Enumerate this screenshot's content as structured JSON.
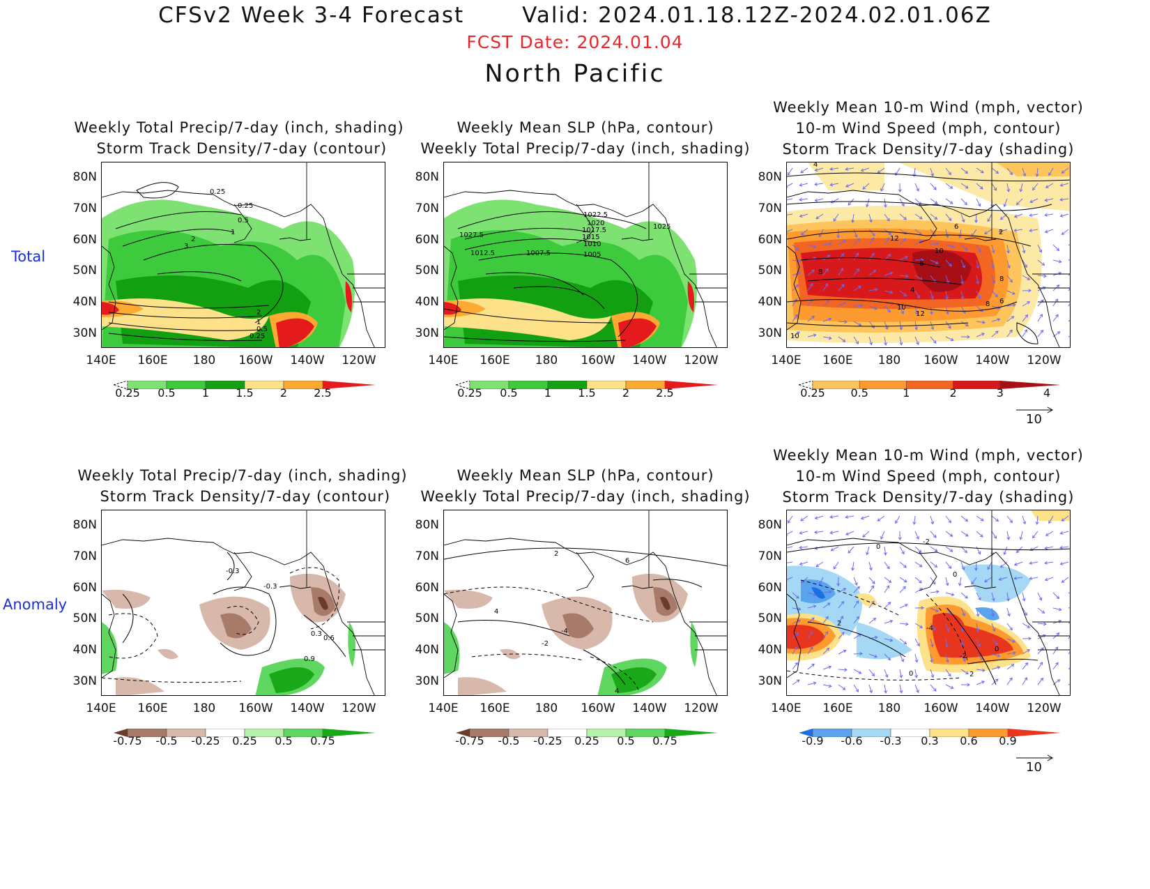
{
  "header": {
    "title_line": "CFSv2 Week 3-4 Forecast       Valid: 2024.01.18.12Z-2024.02.01.06Z",
    "fcst_date": "FCST Date: 2024.01.04",
    "region": "North Pacific"
  },
  "rows": [
    {
      "label": "Total"
    },
    {
      "label": "Anomaly"
    }
  ],
  "panels": [
    {
      "title": "Weekly Total Precip/7-day (inch, shading)\n Storm Track Density/7-day (contour)",
      "colorbar_labels": [
        "0.25",
        "0.5",
        "1",
        "1.5",
        "2",
        "2.5"
      ],
      "colorbar_colors": [
        "#c8f7c0",
        "#7ee272",
        "#3dca3d",
        "#12a012",
        "#fee28a",
        "#fdaa33",
        "#e41a1c"
      ],
      "contour_labels": [
        "0.25",
        "0.25",
        "0.5",
        "1",
        "2",
        "3",
        "2",
        "1",
        "0.5",
        "0.25"
      ]
    },
    {
      "title": "Weekly Mean SLP (hPa, contour)\nWeekly Total Precip/7-day (inch, shading)",
      "colorbar_labels": [
        "0.25",
        "0.5",
        "1",
        "1.5",
        "2",
        "2.5"
      ],
      "colorbar_colors": [
        "#c8f7c0",
        "#7ee272",
        "#3dca3d",
        "#12a012",
        "#fee28a",
        "#fdaa33",
        "#e41a1c"
      ],
      "contour_labels": [
        "1022.5",
        "1020",
        "1017.5",
        "1015",
        "1010",
        "1005",
        "1027.5",
        "1012.5",
        "1007.5",
        "1025"
      ]
    },
    {
      "title": "Weekly Mean 10-m Wind (mph, vector)\n10-m Wind Speed (mph, contour)\nStorm Track Density/7-day (shading)",
      "colorbar_labels": [
        "0.25",
        "0.5",
        "1",
        "2",
        "3",
        "4"
      ],
      "colorbar_colors": [
        "#fde9a6",
        "#fdc55b",
        "#fd9a30",
        "#f26522",
        "#d7191c",
        "#a50f15"
      ],
      "contour_labels": [
        "4",
        "6",
        "8",
        "2",
        "12",
        "10",
        "6",
        "8",
        "4",
        "6",
        "8",
        "10",
        "12",
        "10"
      ],
      "vector_ref": "10"
    },
    {
      "title": "Weekly Total Precip/7-day (inch, shading)\n Storm Track Density/7-day (contour)",
      "colorbar_labels": [
        "-0.75",
        "-0.5",
        "-0.25",
        "0.25",
        "0.5",
        "0.75"
      ],
      "colorbar_colors": [
        "#6b3b2c",
        "#a87a6a",
        "#d7b8ab",
        "#ffffff",
        "#b6f3a8",
        "#5fd65f",
        "#18a818"
      ],
      "contour_labels": [
        "-0.3",
        "-0.3",
        "0.3",
        "0.6",
        "0.9"
      ]
    },
    {
      "title": "Weekly Mean SLP (hPa, contour)\nWeekly Total Precip/7-day (inch, shading)",
      "colorbar_labels": [
        "-0.75",
        "-0.5",
        "-0.25",
        "0.25",
        "0.5",
        "0.75"
      ],
      "colorbar_colors": [
        "#6b3b2c",
        "#a87a6a",
        "#d7b8ab",
        "#ffffff",
        "#b6f3a8",
        "#5fd65f",
        "#18a818"
      ],
      "contour_labels": [
        "2",
        "6",
        "4",
        "-4",
        "-2",
        "4"
      ]
    },
    {
      "title": "Weekly Mean 10-m Wind (mph, vector)\n10-m Wind Speed (mph, contour)\nStorm Track Density/7-day (shading)",
      "colorbar_labels": [
        "-0.9",
        "-0.6",
        "-0.3",
        "0.3",
        "0.6",
        "0.9"
      ],
      "colorbar_colors": [
        "#1c6fe0",
        "#5aa3ee",
        "#a4d8f5",
        "#ffffff",
        "#fde28a",
        "#fd9a30",
        "#e8351e"
      ],
      "contour_labels": [
        "0",
        "-2",
        "0",
        "2",
        "0",
        "-4",
        "-2",
        "0",
        "2"
      ],
      "vector_ref": "10"
    }
  ],
  "axes": {
    "lat_labels": [
      "80N",
      "70N",
      "60N",
      "50N",
      "40N",
      "30N"
    ],
    "lon_labels": [
      "140E",
      "160E",
      "180",
      "160W",
      "140W",
      "120W"
    ]
  }
}
